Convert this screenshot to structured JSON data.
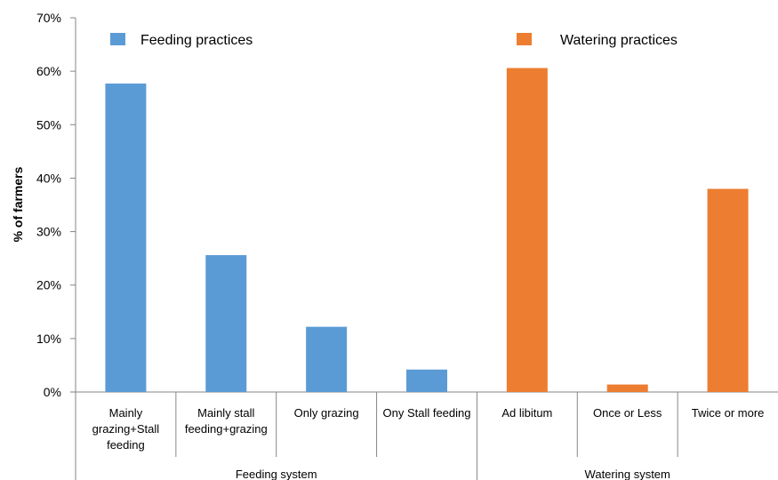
{
  "chart_data": {
    "type": "bar",
    "ylabel": "% of farmers",
    "ylim": [
      0,
      70
    ],
    "y_ticks": [
      "0%",
      "10%",
      "20%",
      "30%",
      "40%",
      "50%",
      "60%",
      "70%"
    ],
    "grid": false,
    "legend_position": "top",
    "groups": [
      {
        "label": "Feeding system",
        "categories": [
          0,
          1,
          2,
          3
        ]
      },
      {
        "label": "Watering system",
        "categories": [
          4,
          5,
          6
        ]
      }
    ],
    "categories": [
      {
        "label_lines": [
          "Mainly",
          "grazing+Stall",
          "feeding"
        ]
      },
      {
        "label_lines": [
          "Mainly stall",
          "feeding+grazing"
        ]
      },
      {
        "label_lines": [
          "Only grazing"
        ]
      },
      {
        "label_lines": [
          "Ony Stall feeding"
        ]
      },
      {
        "label_lines": [
          "Ad libitum"
        ]
      },
      {
        "label_lines": [
          "Once or Less"
        ]
      },
      {
        "label_lines": [
          "Twice or more"
        ]
      }
    ],
    "series": [
      {
        "name": "Feeding practices",
        "color": "#5b9bd5",
        "values": [
          57.7,
          25.6,
          12.2,
          4.2,
          null,
          null,
          null
        ]
      },
      {
        "name": "Watering practices",
        "color": "#ed7d31",
        "values": [
          null,
          null,
          null,
          null,
          60.6,
          1.4,
          38.0
        ]
      }
    ]
  }
}
